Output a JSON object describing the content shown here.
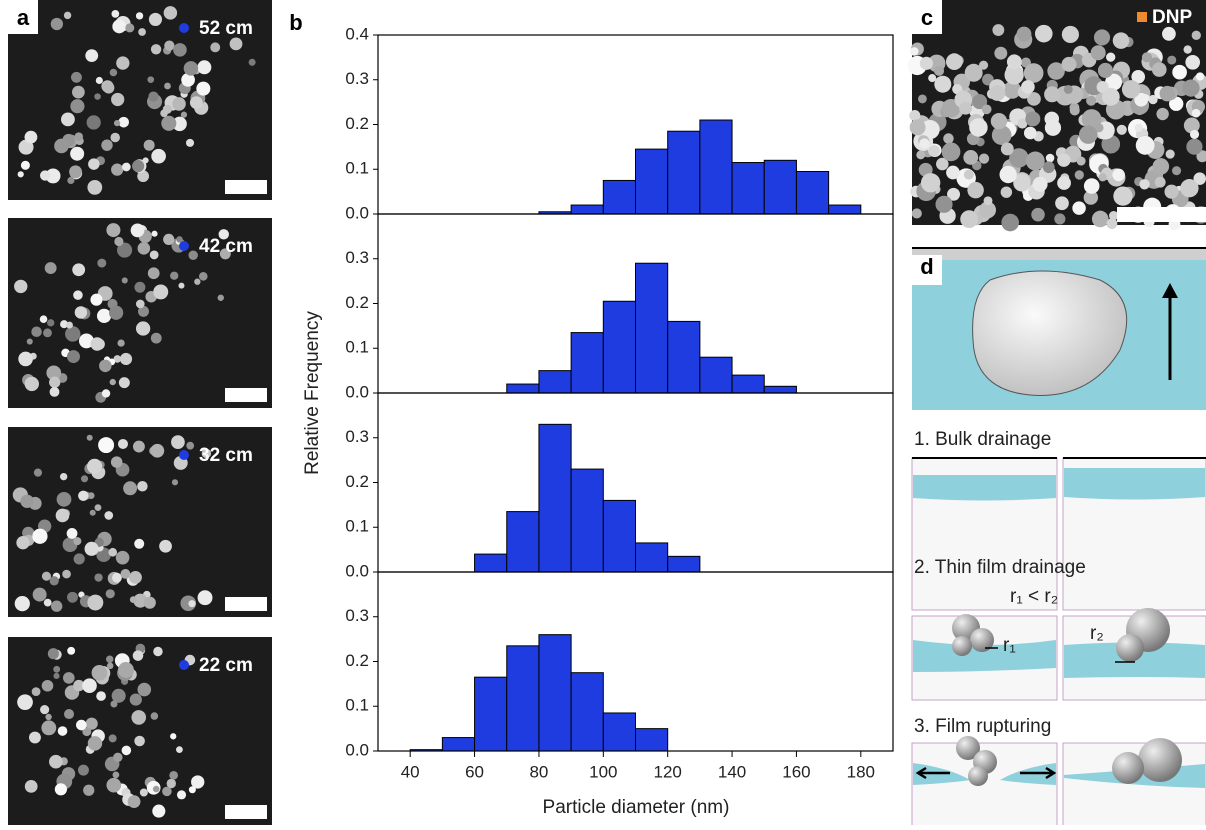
{
  "panel_letters": [
    "a",
    "b",
    "c",
    "d"
  ],
  "axes": {
    "xlabel": "Particle diameter (nm)",
    "ylabel": "Relative Frequency"
  },
  "panel_c": {
    "label": "DNP"
  },
  "panel_d": {
    "steps": [
      "1. Bulk drainage",
      "2. Thin film drainage",
      "3. Film rupturing"
    ],
    "inequality": "r₁ < r₂",
    "r1": "r₁",
    "r2": "r₂"
  },
  "chart_data": [
    {
      "type": "histogram",
      "name": "52 cm",
      "color": "#1e3ce0",
      "bins": [
        80,
        90,
        100,
        110,
        120,
        130,
        140,
        150,
        160,
        170,
        180
      ],
      "values": [
        0.005,
        0.02,
        0.075,
        0.145,
        0.185,
        0.21,
        0.115,
        0.12,
        0.095,
        0.02
      ],
      "xlim": [
        30,
        190
      ],
      "ylim": [
        0,
        0.4
      ],
      "yticks": [
        {
          "value": 0,
          "label": "0.0"
        },
        0.1,
        0.2,
        0.3,
        0.4
      ]
    },
    {
      "type": "histogram",
      "name": "42 cm",
      "color": "#1e3ce0",
      "bins": [
        70,
        80,
        90,
        100,
        110,
        120,
        130,
        140,
        150,
        160
      ],
      "values": [
        0.02,
        0.05,
        0.135,
        0.205,
        0.29,
        0.16,
        0.08,
        0.04,
        0.015
      ],
      "xlim": [
        30,
        190
      ],
      "ylim": [
        0,
        0.4
      ],
      "yticks": [
        {
          "value": 0,
          "label": "0.0"
        },
        0.1,
        0.2,
        0.3
      ]
    },
    {
      "type": "histogram",
      "name": "32 cm",
      "color": "#1e3ce0",
      "bins": [
        60,
        70,
        80,
        90,
        100,
        110,
        120,
        130
      ],
      "values": [
        0.04,
        0.135,
        0.33,
        0.23,
        0.16,
        0.065,
        0.035
      ],
      "xlim": [
        30,
        190
      ],
      "ylim": [
        0,
        0.4
      ],
      "yticks": [
        {
          "value": 0,
          "label": "0.0"
        },
        0.1,
        0.2,
        0.3
      ]
    },
    {
      "type": "histogram",
      "name": "22 cm",
      "color": "#1e3ce0",
      "bins": [
        40,
        50,
        60,
        70,
        80,
        90,
        100,
        110,
        120
      ],
      "values": [
        0.003,
        0.03,
        0.165,
        0.235,
        0.26,
        0.175,
        0.085,
        0.05
      ],
      "xlim": [
        30,
        190
      ],
      "ylim": [
        0,
        0.4
      ],
      "yticks": [
        {
          "value": 0,
          "label": "0.0"
        },
        0.1,
        0.2,
        0.3
      ],
      "xticks": [
        40,
        60,
        80,
        100,
        120,
        140,
        160,
        180
      ]
    }
  ]
}
